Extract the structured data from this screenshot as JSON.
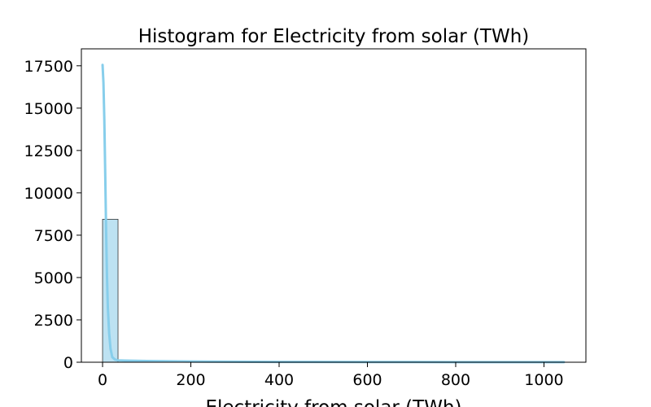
{
  "chart_data": {
    "type": "bar",
    "title": "Histogram for Electricity from solar (TWh)",
    "xlabel": "Electricity from solar (TWh)",
    "ylabel": "",
    "xlim": [
      -48,
      1095
    ],
    "ylim": [
      0,
      18500
    ],
    "xticks": [
      0,
      200,
      400,
      600,
      800,
      1000
    ],
    "xtick_labels": [
      "0",
      "200",
      "400",
      "600",
      "800",
      "1000"
    ],
    "yticks": [
      0,
      2500,
      5000,
      7500,
      10000,
      12500,
      15000,
      17500
    ],
    "ytick_labels": [
      "0",
      "2500",
      "5000",
      "7500",
      "10000",
      "12500",
      "15000",
      "17500"
    ],
    "bins": [
      {
        "x0": 0,
        "x1": 35,
        "count": 8440
      }
    ],
    "kde": {
      "x": [
        0,
        2,
        4,
        6,
        8,
        10,
        12,
        15,
        18,
        22,
        28,
        35,
        50,
        100,
        200,
        400,
        600,
        800,
        1000,
        1045
      ],
      "y": [
        17550,
        16500,
        14300,
        11200,
        7800,
        5100,
        3200,
        1700,
        800,
        300,
        160,
        110,
        95,
        70,
        40,
        20,
        12,
        8,
        5,
        5
      ]
    },
    "grid": false,
    "legend": "none",
    "colors": {
      "bar_fill": "#bde2f2",
      "bar_edge": "#333333",
      "kde_line": "#87ceeb",
      "axis": "#000000"
    }
  }
}
